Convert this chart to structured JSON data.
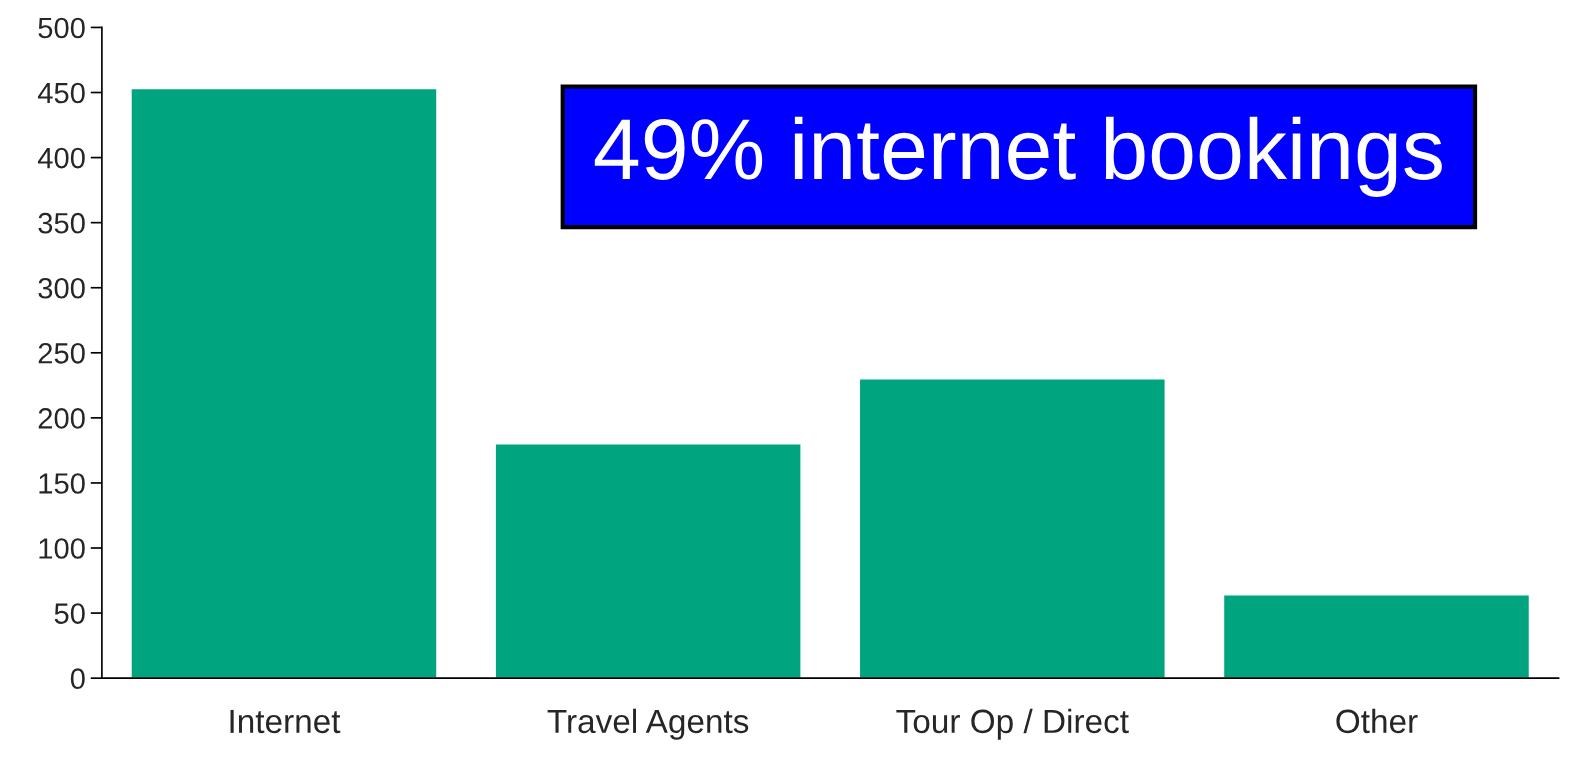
{
  "chart_data": {
    "type": "bar",
    "categories": [
      "Internet",
      "Travel Agents",
      "Tour Op / Direct",
      "Other"
    ],
    "values": [
      453,
      180,
      230,
      64
    ],
    "color": "#00a47f",
    "ylim": [
      0,
      500
    ],
    "yticks": [
      0,
      50,
      100,
      150,
      200,
      250,
      300,
      350,
      400,
      450,
      500
    ],
    "grid": false,
    "annotations": [
      "49% internet bookings"
    ]
  }
}
